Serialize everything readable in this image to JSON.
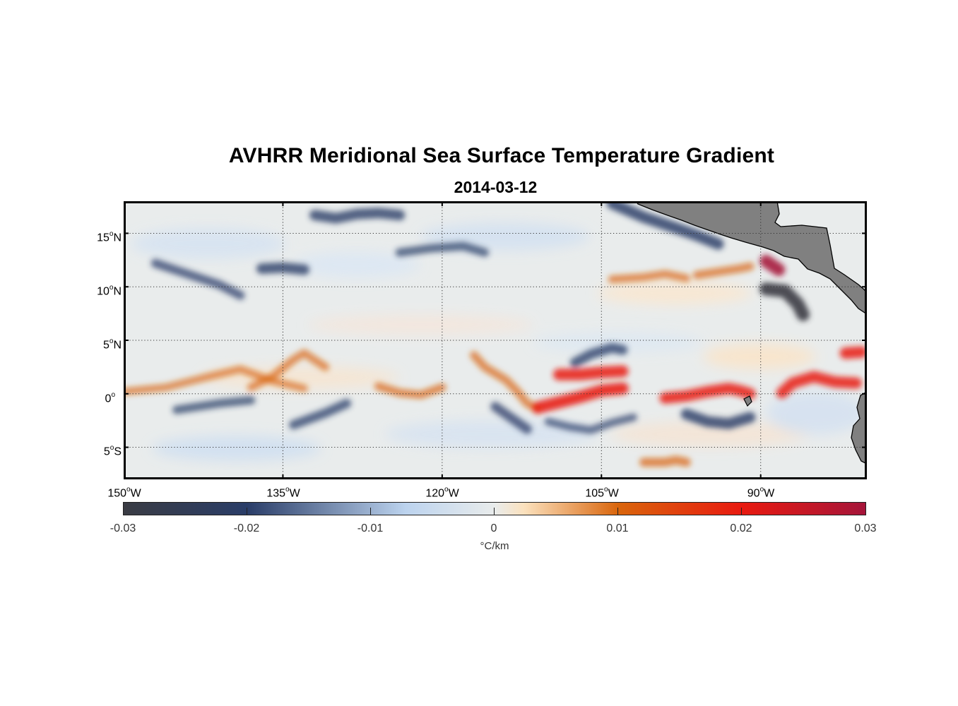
{
  "title": "AVHRR Meridional Sea Surface Temperature Gradient",
  "subtitle": "2014-03-12",
  "colors": {
    "land": "#808080",
    "coast": "#000000",
    "ocean_neutral": "#e9ecec",
    "strong_negative": "#3a3c44",
    "negative": "#2a3d68",
    "weak_negative": "#bcd3ee",
    "weak_positive": "#fbe1bd",
    "positive": "#d9650c",
    "strong_positive": "#e81a10",
    "max_positive": "#a5153a"
  },
  "chart_data": {
    "type": "heatmap",
    "title": "AVHRR Meridional Sea Surface Temperature Gradient",
    "date": "2014-03-12",
    "xlim": [
      -150,
      -80
    ],
    "ylim": [
      -8,
      18
    ],
    "x_ticks": [
      {
        "value": -150,
        "deg": "150",
        "hemi": "W"
      },
      {
        "value": -135,
        "deg": "135",
        "hemi": "W"
      },
      {
        "value": -120,
        "deg": "120",
        "hemi": "W"
      },
      {
        "value": -105,
        "deg": "105",
        "hemi": "W"
      },
      {
        "value": -90,
        "deg": "90",
        "hemi": "W"
      }
    ],
    "y_ticks": [
      {
        "value": 15,
        "deg": "15",
        "hemi": "N"
      },
      {
        "value": 10,
        "deg": "10",
        "hemi": "N"
      },
      {
        "value": 5,
        "deg": "5",
        "hemi": "N"
      },
      {
        "value": 0,
        "deg": "0",
        "hemi": ""
      },
      {
        "value": -5,
        "deg": "5",
        "hemi": "S"
      }
    ],
    "grid": "dotted",
    "colorbar": {
      "ticks": [
        "-0.03",
        "-0.02",
        "-0.01",
        "0",
        "0.01",
        "0.02",
        "0.03"
      ],
      "range": [
        -0.03,
        0.03
      ],
      "label": "°C/km"
    },
    "features": [
      {
        "lon": [
          -150,
          -146,
          -142,
          -139,
          -136,
          -133
        ],
        "lat": [
          0.2,
          0.6,
          1.6,
          2.3,
          1.2,
          0.5
        ],
        "value": 0.009
      },
      {
        "lon": [
          -138,
          -136,
          -134,
          -133,
          -131
        ],
        "lat": [
          0.6,
          1.6,
          3.2,
          3.8,
          2.5
        ],
        "value": 0.01
      },
      {
        "lon": [
          -126,
          -124,
          -122,
          -120
        ],
        "lat": [
          0.7,
          0.1,
          -0.1,
          0.6
        ],
        "value": 0.011
      },
      {
        "lon": [
          -117,
          -116,
          -114,
          -113,
          -112,
          -111
        ],
        "lat": [
          3.6,
          2.5,
          1.3,
          0.3,
          -0.9,
          -1.4
        ],
        "value": 0.011
      },
      {
        "lon": [
          -111,
          -109,
          -107,
          -105,
          -103
        ],
        "lat": [
          -1.3,
          -0.8,
          -0.3,
          0.3,
          0.5
        ],
        "value": 0.022
      },
      {
        "lon": [
          -109,
          -107,
          -105,
          -103
        ],
        "lat": [
          1.8,
          1.8,
          2.0,
          2.1
        ],
        "value": 0.021
      },
      {
        "lon": [
          -99,
          -97,
          -95,
          -93,
          -92,
          -91
        ],
        "lat": [
          -0.4,
          -0.2,
          0.2,
          0.5,
          0.3,
          0.0
        ],
        "value": 0.02
      },
      {
        "lon": [
          -88,
          -87,
          -85,
          -83,
          -81
        ],
        "lat": [
          0.1,
          1.0,
          1.6,
          1.1,
          1.0
        ],
        "value": 0.02
      },
      {
        "lon": [
          -89.5,
          -88.3
        ],
        "lat": [
          12.4,
          11.6
        ],
        "value": 0.024
      },
      {
        "lon": [
          -104,
          -101,
          -99,
          -97
        ],
        "lat": [
          10.7,
          10.9,
          11.2,
          10.8
        ],
        "value": 0.01
      },
      {
        "lon": [
          -96,
          -94,
          -92,
          -91
        ],
        "lat": [
          11.1,
          11.4,
          11.7,
          11.9
        ],
        "value": 0.011
      },
      {
        "lon": [
          -101,
          -99,
          -98,
          -97
        ],
        "lat": [
          -6.4,
          -6.4,
          -6.2,
          -6.4
        ],
        "value": 0.013
      },
      {
        "lon": [
          -82,
          -80.5
        ],
        "lat": [
          3.8,
          3.9
        ],
        "value": 0.021
      },
      {
        "lon": [
          -147,
          -144,
          -141,
          -139
        ],
        "lat": [
          12.2,
          11.2,
          10.2,
          9.2
        ],
        "value": -0.013
      },
      {
        "lon": [
          -137,
          -135,
          -133
        ],
        "lat": [
          11.7,
          11.8,
          11.6
        ],
        "value": -0.018
      },
      {
        "lon": [
          -132,
          -130,
          -128,
          -126,
          -124
        ],
        "lat": [
          16.7,
          16.4,
          16.8,
          16.9,
          16.7
        ],
        "value": -0.018
      },
      {
        "lon": [
          -124,
          -121,
          -118,
          -116
        ],
        "lat": [
          13.2,
          13.6,
          13.8,
          13.2
        ],
        "value": -0.012
      },
      {
        "lon": [
          -104,
          -101,
          -98,
          -96,
          -94
        ],
        "lat": [
          17.8,
          16.5,
          15.5,
          14.8,
          14.0
        ],
        "value": -0.02
      },
      {
        "lon": [
          -89.5,
          -87.7,
          -86.5,
          -86
        ],
        "lat": [
          9.8,
          9.6,
          8.4,
          7.4
        ],
        "value": -0.025
      },
      {
        "lon": [
          -107.5,
          -106,
          -104,
          -103
        ],
        "lat": [
          2.9,
          3.7,
          4.3,
          4.1
        ],
        "value": -0.016
      },
      {
        "lon": [
          -134,
          -131,
          -129
        ],
        "lat": [
          -2.9,
          -1.8,
          -0.9
        ],
        "value": -0.014
      },
      {
        "lon": [
          -145,
          -141,
          -138
        ],
        "lat": [
          -1.5,
          -0.9,
          -0.6
        ],
        "value": -0.012
      },
      {
        "lon": [
          -97,
          -95,
          -93,
          -91
        ],
        "lat": [
          -1.9,
          -2.6,
          -2.8,
          -2.2
        ],
        "value": -0.019
      },
      {
        "lon": [
          -115,
          -113,
          -112
        ],
        "lat": [
          -1.2,
          -2.6,
          -3.3
        ],
        "value": -0.015
      },
      {
        "lon": [
          -110,
          -108,
          -106,
          -104,
          -102
        ],
        "lat": [
          -2.6,
          -3.1,
          -3.4,
          -2.7,
          -2.2
        ],
        "value": -0.01
      }
    ]
  }
}
